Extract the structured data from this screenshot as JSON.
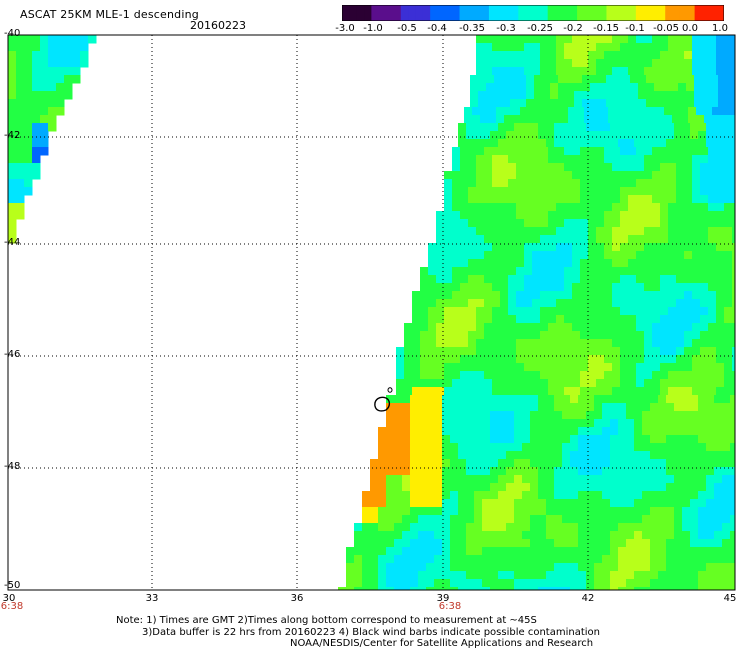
{
  "header": {
    "title": "ASCAT 25KM MLE-1 descending",
    "date": "20160223"
  },
  "colorbar": {
    "ticks": [
      "-3.0",
      "-1.0",
      "-0.5",
      "-0.4",
      "-0.35",
      "-0.3",
      "-0.25",
      "-0.2",
      "-0.15",
      "-0.1",
      "-0.05",
      "0.0",
      "1.0"
    ],
    "colors": [
      "#2b0033",
      "#5a0e8c",
      "#3b2fd6",
      "#0066ff",
      "#00aaff",
      "#00e5ff",
      "#00ffcc",
      "#22ff44",
      "#66ff22",
      "#b8ff1a",
      "#ffee00",
      "#ff9900",
      "#ff2200"
    ]
  },
  "axes": {
    "lat_labels": [
      "-40",
      "-42",
      "-44",
      "-46",
      "-48",
      "-50"
    ],
    "lon_labels": [
      "30",
      "33",
      "36",
      "39",
      "42",
      "45"
    ],
    "time_labels": [
      "6:38",
      "6:38"
    ]
  },
  "notes": {
    "line1": "Note: 1) Times are GMT 2)Times along bottom correspond to measurement at ~45S",
    "line2": "3)Data buffer is 22 hrs from 20160223 4) Black wind barbs indicate possible contamination",
    "line3": "NOAA/NESDIS/Center for Satellite Applications and Research"
  }
}
